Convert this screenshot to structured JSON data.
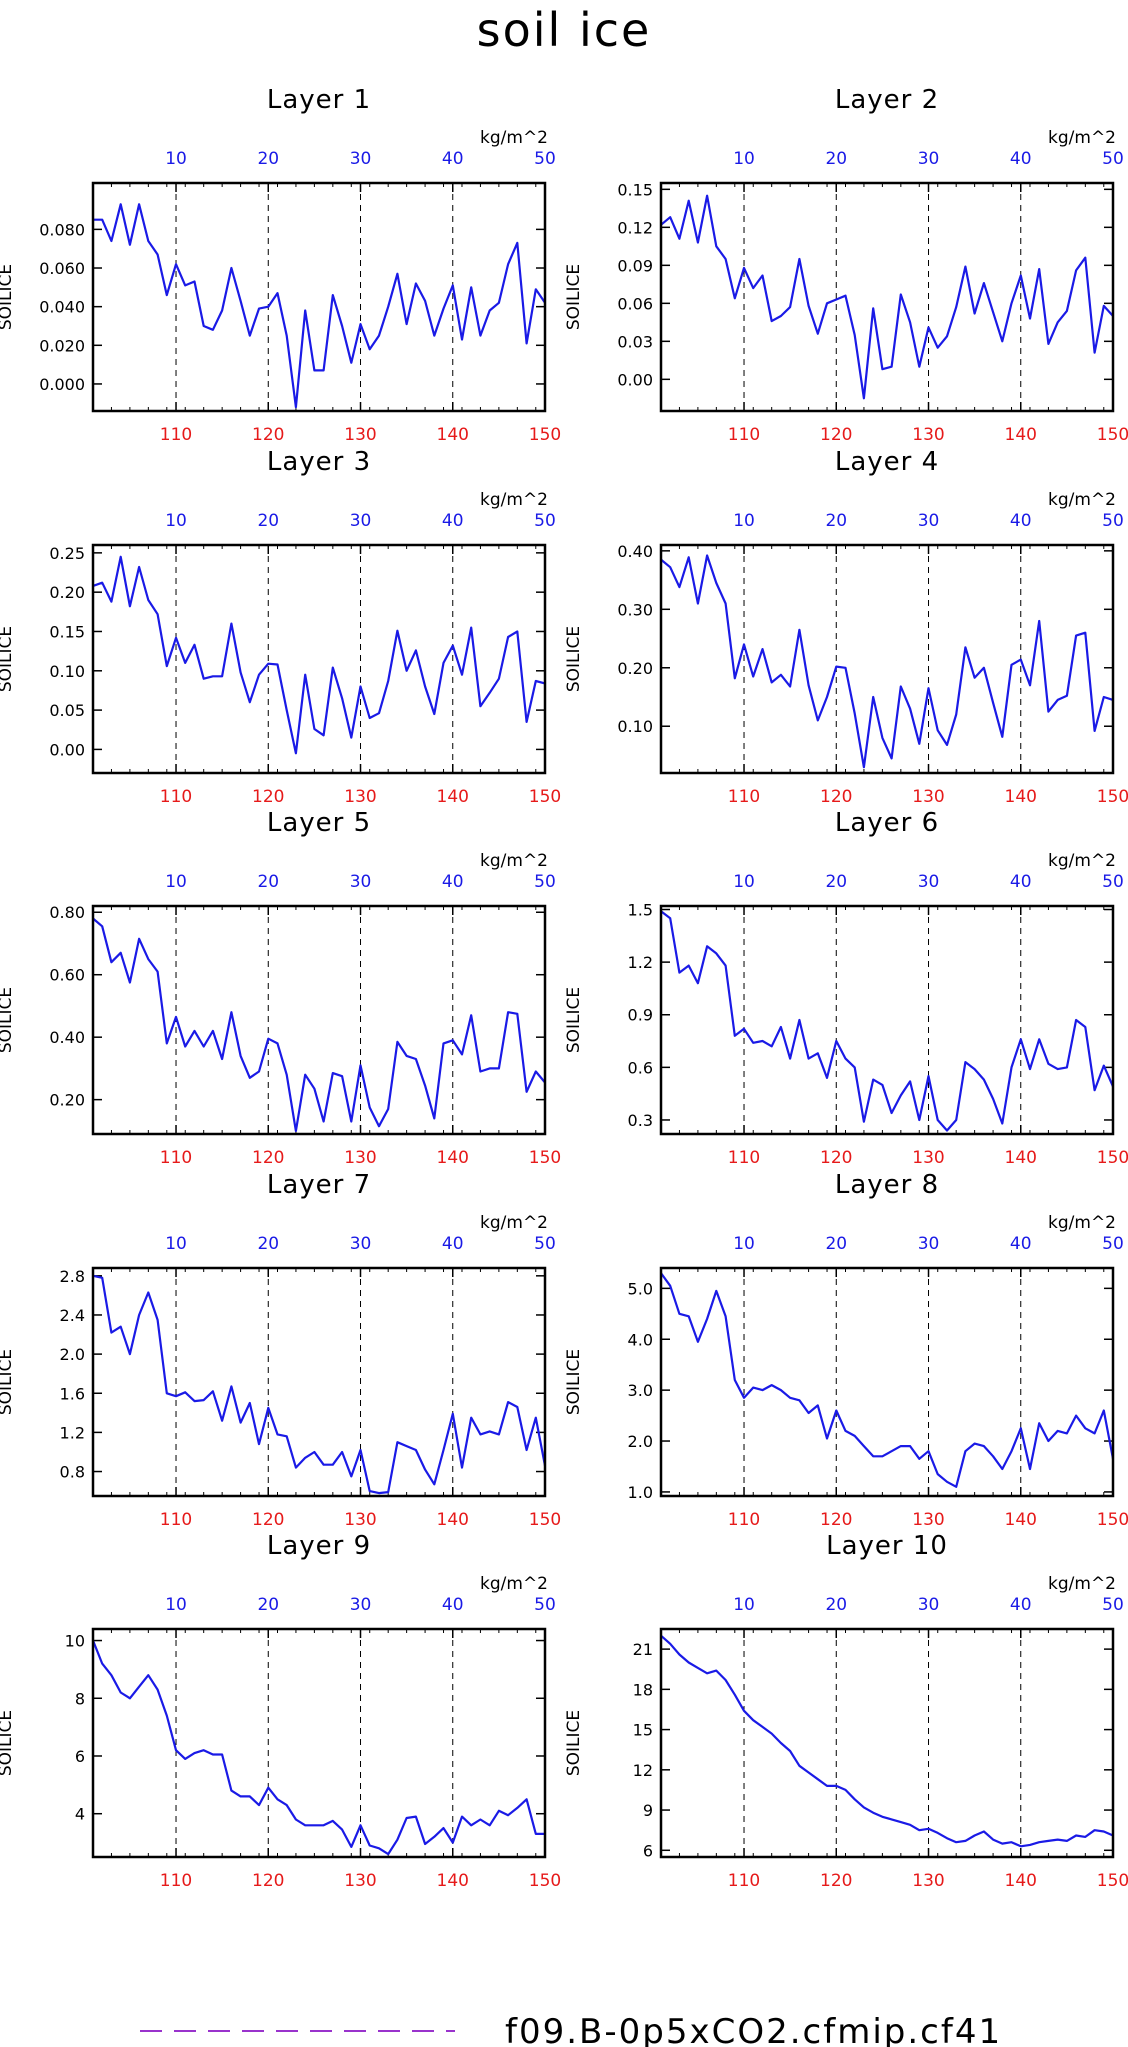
{
  "title": "soil ice",
  "colors": {
    "series": "#1a1ae6",
    "top_ticks": "#1a1ae6",
    "bottom_ticks": "#e61a1a",
    "axis": "#000000"
  },
  "top_axis": {
    "unit": "kg/m^2",
    "ticks": [
      10,
      20,
      30,
      40,
      50
    ]
  },
  "bottom_axis": {
    "ticks": [
      110,
      120,
      130,
      140,
      150
    ]
  },
  "legend": {
    "label": "f09.B-0p5xCO2.cfmip.cf41"
  },
  "chart_data": [
    {
      "type": "line",
      "title": "Layer 1",
      "ylabel": "SOILICE",
      "xlim": [
        101,
        150
      ],
      "ylim": [
        -0.014,
        0.104
      ],
      "yticks": [
        0.0,
        0.02,
        0.04,
        0.06,
        0.08
      ],
      "ytick_labels": [
        "0.000",
        "0.020",
        "0.040",
        "0.060",
        "0.080"
      ],
      "x": [
        101,
        102,
        103,
        104,
        105,
        106,
        107,
        108,
        109,
        110,
        111,
        112,
        113,
        114,
        115,
        116,
        117,
        118,
        119,
        120,
        121,
        122,
        123,
        124,
        125,
        126,
        127,
        128,
        129,
        130,
        131,
        132,
        133,
        134,
        135,
        136,
        137,
        138,
        139,
        140,
        141,
        142,
        143,
        144,
        145,
        146,
        147,
        148,
        149,
        150
      ],
      "values": [
        0.085,
        0.085,
        0.074,
        0.093,
        0.072,
        0.093,
        0.074,
        0.067,
        0.046,
        0.062,
        0.051,
        0.053,
        0.03,
        0.028,
        0.038,
        0.06,
        0.043,
        0.025,
        0.039,
        0.04,
        0.047,
        0.025,
        -0.012,
        0.038,
        0.007,
        0.007,
        0.046,
        0.03,
        0.011,
        0.031,
        0.018,
        0.025,
        0.04,
        0.057,
        0.031,
        0.052,
        0.043,
        0.025,
        0.039,
        0.051,
        0.023,
        0.05,
        0.025,
        0.038,
        0.042,
        0.062,
        0.073,
        0.021,
        0.049,
        0.042
      ]
    },
    {
      "type": "line",
      "title": "Layer 2",
      "ylabel": "SOILICE",
      "xlim": [
        101,
        150
      ],
      "ylim": [
        -0.025,
        0.155
      ],
      "yticks": [
        0.0,
        0.03,
        0.06,
        0.09,
        0.12,
        0.15
      ],
      "ytick_labels": [
        "0.00",
        "0.03",
        "0.06",
        "0.09",
        "0.12",
        "0.15"
      ],
      "x": [
        101,
        102,
        103,
        104,
        105,
        106,
        107,
        108,
        109,
        110,
        111,
        112,
        113,
        114,
        115,
        116,
        117,
        118,
        119,
        120,
        121,
        122,
        123,
        124,
        125,
        126,
        127,
        128,
        129,
        130,
        131,
        132,
        133,
        134,
        135,
        136,
        137,
        138,
        139,
        140,
        141,
        142,
        143,
        144,
        145,
        146,
        147,
        148,
        149,
        150
      ],
      "values": [
        0.122,
        0.128,
        0.111,
        0.141,
        0.108,
        0.145,
        0.105,
        0.095,
        0.064,
        0.088,
        0.072,
        0.082,
        0.046,
        0.05,
        0.057,
        0.095,
        0.058,
        0.036,
        0.06,
        0.063,
        0.066,
        0.035,
        -0.015,
        0.056,
        0.008,
        0.01,
        0.067,
        0.045,
        0.01,
        0.041,
        0.025,
        0.034,
        0.057,
        0.089,
        0.052,
        0.076,
        0.053,
        0.03,
        0.06,
        0.082,
        0.048,
        0.087,
        0.028,
        0.045,
        0.054,
        0.086,
        0.096,
        0.021,
        0.058,
        0.05
      ]
    },
    {
      "type": "line",
      "title": "Layer 3",
      "ylabel": "SOILICE",
      "xlim": [
        101,
        150
      ],
      "ylim": [
        -0.03,
        0.26
      ],
      "yticks": [
        0.0,
        0.05,
        0.1,
        0.15,
        0.2,
        0.25
      ],
      "ytick_labels": [
        "0.00",
        "0.05",
        "0.10",
        "0.15",
        "0.20",
        "0.25"
      ],
      "x": [
        101,
        102,
        103,
        104,
        105,
        106,
        107,
        108,
        109,
        110,
        111,
        112,
        113,
        114,
        115,
        116,
        117,
        118,
        119,
        120,
        121,
        122,
        123,
        124,
        125,
        126,
        127,
        128,
        129,
        130,
        131,
        132,
        133,
        134,
        135,
        136,
        137,
        138,
        139,
        140,
        141,
        142,
        143,
        144,
        145,
        146,
        147,
        148,
        149,
        150
      ],
      "values": [
        0.208,
        0.212,
        0.188,
        0.245,
        0.182,
        0.232,
        0.19,
        0.172,
        0.106,
        0.142,
        0.11,
        0.133,
        0.09,
        0.093,
        0.093,
        0.16,
        0.098,
        0.06,
        0.095,
        0.109,
        0.108,
        0.05,
        -0.005,
        0.095,
        0.026,
        0.018,
        0.104,
        0.065,
        0.015,
        0.08,
        0.04,
        0.046,
        0.087,
        0.151,
        0.1,
        0.126,
        0.08,
        0.045,
        0.11,
        0.132,
        0.095,
        0.155,
        0.055,
        0.072,
        0.09,
        0.143,
        0.15,
        0.035,
        0.087,
        0.084
      ]
    },
    {
      "type": "line",
      "title": "Layer 4",
      "ylabel": "SOILICE",
      "xlim": [
        101,
        150
      ],
      "ylim": [
        0.02,
        0.41
      ],
      "yticks": [
        0.1,
        0.2,
        0.3,
        0.4
      ],
      "ytick_labels": [
        "0.10",
        "0.20",
        "0.30",
        "0.40"
      ],
      "x": [
        101,
        102,
        103,
        104,
        105,
        106,
        107,
        108,
        109,
        110,
        111,
        112,
        113,
        114,
        115,
        116,
        117,
        118,
        119,
        120,
        121,
        122,
        123,
        124,
        125,
        126,
        127,
        128,
        129,
        130,
        131,
        132,
        133,
        134,
        135,
        136,
        137,
        138,
        139,
        140,
        141,
        142,
        143,
        144,
        145,
        146,
        147,
        148,
        149,
        150
      ],
      "values": [
        0.385,
        0.372,
        0.338,
        0.389,
        0.31,
        0.392,
        0.345,
        0.31,
        0.182,
        0.24,
        0.185,
        0.232,
        0.175,
        0.188,
        0.168,
        0.265,
        0.17,
        0.11,
        0.15,
        0.202,
        0.2,
        0.122,
        0.03,
        0.15,
        0.08,
        0.045,
        0.168,
        0.13,
        0.07,
        0.165,
        0.093,
        0.068,
        0.12,
        0.235,
        0.183,
        0.2,
        0.14,
        0.082,
        0.205,
        0.214,
        0.17,
        0.28,
        0.125,
        0.145,
        0.152,
        0.255,
        0.26,
        0.092,
        0.15,
        0.145
      ]
    },
    {
      "type": "line",
      "title": "Layer 5",
      "ylabel": "SOILICE",
      "xlim": [
        101,
        150
      ],
      "ylim": [
        0.09,
        0.82
      ],
      "yticks": [
        0.2,
        0.4,
        0.6,
        0.8
      ],
      "ytick_labels": [
        "0.20",
        "0.40",
        "0.60",
        "0.80"
      ],
      "x": [
        101,
        102,
        103,
        104,
        105,
        106,
        107,
        108,
        109,
        110,
        111,
        112,
        113,
        114,
        115,
        116,
        117,
        118,
        119,
        120,
        121,
        122,
        123,
        124,
        125,
        126,
        127,
        128,
        129,
        130,
        131,
        132,
        133,
        134,
        135,
        136,
        137,
        138,
        139,
        140,
        141,
        142,
        143,
        144,
        145,
        146,
        147,
        148,
        149,
        150
      ],
      "values": [
        0.78,
        0.755,
        0.64,
        0.67,
        0.575,
        0.715,
        0.65,
        0.61,
        0.38,
        0.465,
        0.37,
        0.42,
        0.37,
        0.42,
        0.33,
        0.48,
        0.34,
        0.27,
        0.29,
        0.395,
        0.38,
        0.28,
        0.1,
        0.28,
        0.235,
        0.13,
        0.285,
        0.275,
        0.13,
        0.31,
        0.175,
        0.115,
        0.17,
        0.385,
        0.34,
        0.33,
        0.245,
        0.14,
        0.38,
        0.39,
        0.345,
        0.47,
        0.29,
        0.3,
        0.3,
        0.48,
        0.475,
        0.225,
        0.29,
        0.255
      ]
    },
    {
      "type": "line",
      "title": "Layer 6",
      "ylabel": "SOILICE",
      "xlim": [
        101,
        150
      ],
      "ylim": [
        0.22,
        1.52
      ],
      "yticks": [
        0.3,
        0.6,
        0.9,
        1.2,
        1.5
      ],
      "ytick_labels": [
        "0.3",
        "0.6",
        "0.9",
        "1.2",
        "1.5"
      ],
      "x": [
        101,
        102,
        103,
        104,
        105,
        106,
        107,
        108,
        109,
        110,
        111,
        112,
        113,
        114,
        115,
        116,
        117,
        118,
        119,
        120,
        121,
        122,
        123,
        124,
        125,
        126,
        127,
        128,
        129,
        130,
        131,
        132,
        133,
        134,
        135,
        136,
        137,
        138,
        139,
        140,
        141,
        142,
        143,
        144,
        145,
        146,
        147,
        148,
        149,
        150
      ],
      "values": [
        1.49,
        1.45,
        1.14,
        1.18,
        1.08,
        1.29,
        1.25,
        1.18,
        0.78,
        0.82,
        0.74,
        0.75,
        0.72,
        0.83,
        0.65,
        0.87,
        0.65,
        0.68,
        0.54,
        0.75,
        0.65,
        0.6,
        0.29,
        0.53,
        0.5,
        0.34,
        0.44,
        0.52,
        0.3,
        0.55,
        0.3,
        0.24,
        0.3,
        0.63,
        0.59,
        0.53,
        0.42,
        0.28,
        0.6,
        0.76,
        0.59,
        0.76,
        0.62,
        0.59,
        0.6,
        0.87,
        0.83,
        0.47,
        0.61,
        0.49
      ]
    },
    {
      "type": "line",
      "title": "Layer 7",
      "ylabel": "SOILICE",
      "xlim": [
        101,
        150
      ],
      "ylim": [
        0.55,
        2.88
      ],
      "yticks": [
        0.8,
        1.2,
        1.6,
        2.0,
        2.4,
        2.8
      ],
      "ytick_labels": [
        "0.8",
        "1.2",
        "1.6",
        "2.0",
        "2.4",
        "2.8"
      ],
      "x": [
        101,
        102,
        103,
        104,
        105,
        106,
        107,
        108,
        109,
        110,
        111,
        112,
        113,
        114,
        115,
        116,
        117,
        118,
        119,
        120,
        121,
        122,
        123,
        124,
        125,
        126,
        127,
        128,
        129,
        130,
        131,
        132,
        133,
        134,
        135,
        136,
        137,
        138,
        139,
        140,
        141,
        142,
        143,
        144,
        145,
        146,
        147,
        148,
        149,
        150
      ],
      "values": [
        2.8,
        2.78,
        2.22,
        2.28,
        2.0,
        2.4,
        2.63,
        2.35,
        1.6,
        1.57,
        1.61,
        1.52,
        1.53,
        1.62,
        1.32,
        1.67,
        1.3,
        1.5,
        1.08,
        1.45,
        1.18,
        1.16,
        0.84,
        0.94,
        1.0,
        0.87,
        0.87,
        1.0,
        0.75,
        1.02,
        0.6,
        0.58,
        0.59,
        1.1,
        1.06,
        1.02,
        0.82,
        0.67,
        1.02,
        1.39,
        0.84,
        1.35,
        1.18,
        1.21,
        1.18,
        1.51,
        1.46,
        1.02,
        1.35,
        0.86
      ]
    },
    {
      "type": "line",
      "title": "Layer 8",
      "ylabel": "SOILICE",
      "xlim": [
        101,
        150
      ],
      "ylim": [
        0.92,
        5.4
      ],
      "yticks": [
        1.0,
        2.0,
        3.0,
        4.0,
        5.0
      ],
      "ytick_labels": [
        "1.0",
        "2.0",
        "3.0",
        "4.0",
        "5.0"
      ],
      "x": [
        101,
        102,
        103,
        104,
        105,
        106,
        107,
        108,
        109,
        110,
        111,
        112,
        113,
        114,
        115,
        116,
        117,
        118,
        119,
        120,
        121,
        122,
        123,
        124,
        125,
        126,
        127,
        128,
        129,
        130,
        131,
        132,
        133,
        134,
        135,
        136,
        137,
        138,
        139,
        140,
        141,
        142,
        143,
        144,
        145,
        146,
        147,
        148,
        149,
        150
      ],
      "values": [
        5.3,
        5.05,
        4.5,
        4.45,
        3.95,
        4.4,
        4.95,
        4.45,
        3.2,
        2.85,
        3.05,
        3.0,
        3.1,
        3.0,
        2.85,
        2.8,
        2.55,
        2.7,
        2.05,
        2.6,
        2.2,
        2.1,
        1.9,
        1.7,
        1.7,
        1.8,
        1.9,
        1.9,
        1.65,
        1.8,
        1.35,
        1.2,
        1.1,
        1.8,
        1.95,
        1.9,
        1.7,
        1.45,
        1.8,
        2.25,
        1.45,
        2.35,
        2.0,
        2.2,
        2.15,
        2.5,
        2.25,
        2.15,
        2.6,
        1.65
      ]
    },
    {
      "type": "line",
      "title": "Layer 9",
      "ylabel": "SOILICE",
      "xlim": [
        101,
        150
      ],
      "ylim": [
        2.5,
        10.4
      ],
      "yticks": [
        4,
        6,
        8,
        10
      ],
      "ytick_labels": [
        "4",
        "6",
        "8",
        "10"
      ],
      "x": [
        101,
        102,
        103,
        104,
        105,
        106,
        107,
        108,
        109,
        110,
        111,
        112,
        113,
        114,
        115,
        116,
        117,
        118,
        119,
        120,
        121,
        122,
        123,
        124,
        125,
        126,
        127,
        128,
        129,
        130,
        131,
        132,
        133,
        134,
        135,
        136,
        137,
        138,
        139,
        140,
        141,
        142,
        143,
        144,
        145,
        146,
        147,
        148,
        149,
        150
      ],
      "values": [
        10.0,
        9.2,
        8.8,
        8.2,
        8.0,
        8.4,
        8.8,
        8.3,
        7.4,
        6.2,
        5.9,
        6.1,
        6.2,
        6.05,
        6.05,
        4.8,
        4.6,
        4.6,
        4.3,
        4.9,
        4.5,
        4.3,
        3.8,
        3.6,
        3.6,
        3.6,
        3.75,
        3.45,
        2.85,
        3.6,
        2.9,
        2.8,
        2.6,
        3.1,
        3.85,
        3.9,
        2.95,
        3.2,
        3.5,
        3.0,
        3.9,
        3.6,
        3.8,
        3.6,
        4.1,
        3.95,
        4.2,
        4.5,
        3.3,
        3.3
      ]
    },
    {
      "type": "line",
      "title": "Layer 10",
      "ylabel": "SOILICE",
      "xlim": [
        101,
        150
      ],
      "ylim": [
        5.5,
        22.5
      ],
      "yticks": [
        6,
        9,
        12,
        15,
        18,
        21
      ],
      "ytick_labels": [
        "6",
        "9",
        "12",
        "15",
        "18",
        "21"
      ],
      "x": [
        101,
        102,
        103,
        104,
        105,
        106,
        107,
        108,
        109,
        110,
        111,
        112,
        113,
        114,
        115,
        116,
        117,
        118,
        119,
        120,
        121,
        122,
        123,
        124,
        125,
        126,
        127,
        128,
        129,
        130,
        131,
        132,
        133,
        134,
        135,
        136,
        137,
        138,
        139,
        140,
        141,
        142,
        143,
        144,
        145,
        146,
        147,
        148,
        149,
        150
      ],
      "values": [
        22.0,
        21.4,
        20.6,
        20.0,
        19.6,
        19.2,
        19.4,
        18.7,
        17.6,
        16.4,
        15.7,
        15.2,
        14.7,
        14.0,
        13.4,
        12.3,
        11.8,
        11.3,
        10.8,
        10.8,
        10.5,
        9.8,
        9.2,
        8.8,
        8.5,
        8.3,
        8.1,
        7.9,
        7.5,
        7.6,
        7.3,
        6.9,
        6.6,
        6.7,
        7.1,
        7.4,
        6.8,
        6.5,
        6.6,
        6.3,
        6.4,
        6.6,
        6.7,
        6.8,
        6.7,
        7.1,
        7.0,
        7.5,
        7.4,
        7.1
      ]
    }
  ]
}
